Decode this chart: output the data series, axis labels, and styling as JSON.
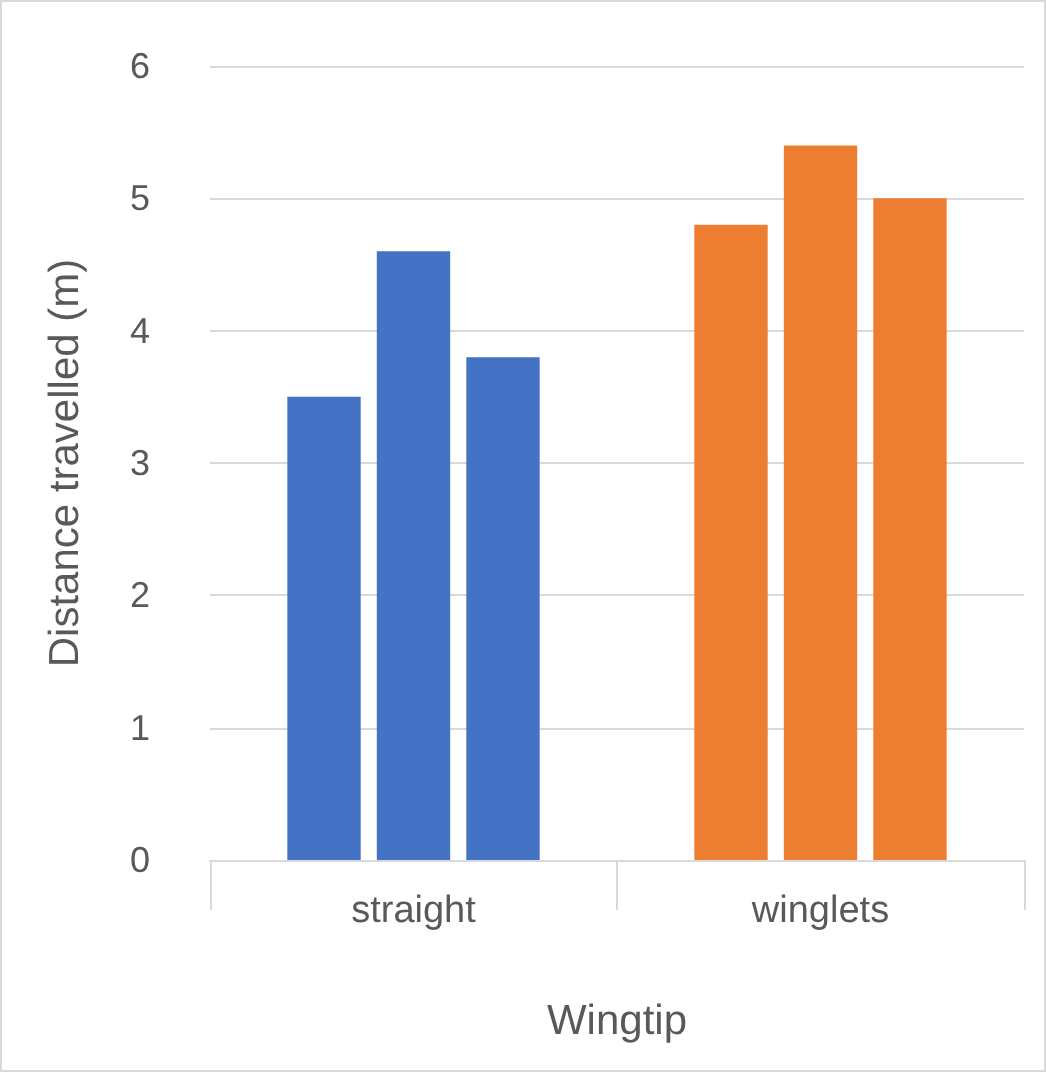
{
  "chart_data": {
    "type": "bar",
    "xlabel": "Wingtip",
    "ylabel": "Distance travelled (m)",
    "categories": [
      "straight",
      "winglets"
    ],
    "series": [
      {
        "colors": [
          "#4472c4",
          "#ed7d31"
        ],
        "values": [
          3.5,
          4.8
        ]
      },
      {
        "colors": [
          "#4472c4",
          "#ed7d31"
        ],
        "values": [
          4.6,
          5.4
        ]
      },
      {
        "colors": [
          "#4472c4",
          "#ed7d31"
        ],
        "values": [
          3.8,
          5.0
        ]
      }
    ],
    "ylim": [
      0,
      6
    ],
    "yticks": [
      0,
      1,
      2,
      3,
      4,
      5,
      6
    ],
    "grid": "y"
  }
}
